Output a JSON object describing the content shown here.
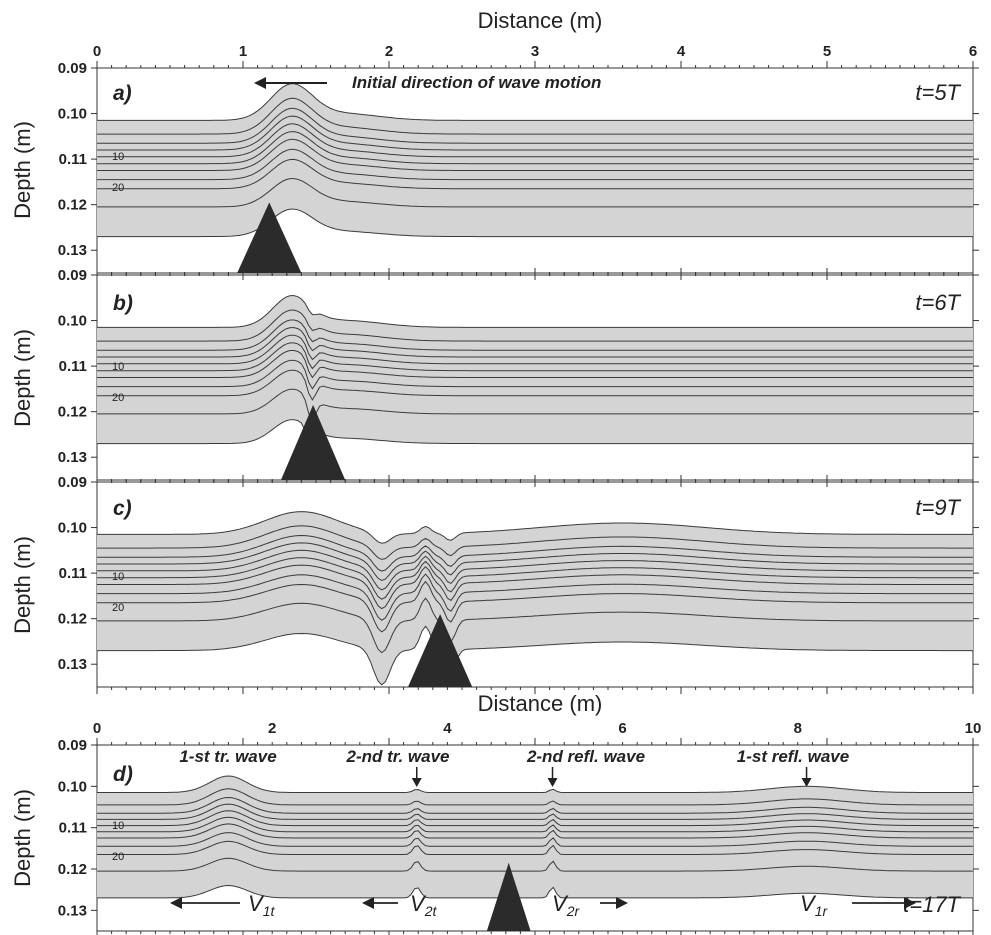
{
  "chart_data": [
    {
      "type": "line",
      "panel": "a)",
      "time_label": "t=5T",
      "annotation": "Initial direction of wave motion",
      "annotation_arrow": "left",
      "xlabel": "Distance (m)",
      "ylabel": "Depth (m)",
      "xlim": [
        0,
        6
      ],
      "ylim": [
        0.09,
        0.135
      ],
      "y_inverted": true,
      "xticks": [
        "0",
        "1",
        "2",
        "3",
        "4",
        "5",
        "6"
      ],
      "yticks": [
        "0.09",
        "0.10",
        "0.11",
        "0.12",
        "0.13"
      ],
      "line_labels": [
        "10",
        "20"
      ],
      "layer_depths": [
        0.1015,
        0.1045,
        0.1065,
        0.108,
        0.1095,
        0.111,
        0.1125,
        0.1145,
        0.1165,
        0.1205,
        0.127
      ],
      "fill_color": "#d4d4d4",
      "obstacle": {
        "center": 1.18,
        "top_depth": 0.1195,
        "half_width": 0.22
      },
      "waves": [
        {
          "center": 1.33,
          "width": 0.2,
          "amplitude": -0.0075
        },
        {
          "center": 1.68,
          "width": 0.35,
          "amplitude": -0.0015
        }
      ],
      "perturbations": []
    },
    {
      "type": "line",
      "panel": "b)",
      "time_label": "t=6T",
      "ylabel": "Depth (m)",
      "xlim": [
        0,
        6
      ],
      "ylim": [
        0.09,
        0.135
      ],
      "y_inverted": true,
      "yticks": [
        "0.09",
        "0.10",
        "0.11",
        "0.12",
        "0.13"
      ],
      "line_labels": [
        "10",
        "20"
      ],
      "layer_depths": [
        0.1015,
        0.1045,
        0.1065,
        0.108,
        0.1095,
        0.111,
        0.1125,
        0.1145,
        0.1165,
        0.1205,
        0.127
      ],
      "fill_color": "#d4d4d4",
      "obstacle": {
        "center": 1.48,
        "top_depth": 0.1185,
        "half_width": 0.22
      },
      "waves": [
        {
          "center": 1.33,
          "width": 0.18,
          "amplitude": -0.0065
        },
        {
          "center": 1.7,
          "width": 0.35,
          "amplitude": -0.0015
        }
      ],
      "perturbations": [
        {
          "center": 1.47,
          "width": 0.04,
          "amplitude": 0.004
        }
      ]
    },
    {
      "type": "line",
      "panel": "c)",
      "time_label": "t=9T",
      "ylabel": "Depth (m)",
      "xlim": [
        0,
        6
      ],
      "ylim": [
        0.09,
        0.135
      ],
      "y_inverted": true,
      "yticks": [
        "0.09",
        "0.10",
        "0.11",
        "0.12",
        "0.13"
      ],
      "line_labels": [
        "10",
        "20"
      ],
      "layer_depths": [
        0.1015,
        0.1045,
        0.1065,
        0.108,
        0.1095,
        0.111,
        0.1125,
        0.1145,
        0.1165,
        0.1205,
        0.127
      ],
      "fill_color": "#d4d4d4",
      "obstacle": {
        "center": 2.35,
        "top_depth": 0.119,
        "half_width": 0.22
      },
      "waves": [
        {
          "center": 1.4,
          "width": 0.35,
          "amplitude": -0.005
        },
        {
          "center": 3.6,
          "width": 0.8,
          "amplitude": -0.0025
        }
      ],
      "perturbations": [
        {
          "center": 1.95,
          "width": 0.08,
          "amplitude": 0.006
        },
        {
          "center": 2.25,
          "width": 0.05,
          "amplitude": -0.004
        },
        {
          "center": 2.42,
          "width": 0.05,
          "amplitude": 0.004
        }
      ]
    },
    {
      "type": "line",
      "panel": "d)",
      "time_label": "t=17T",
      "xlabel": "Distance (m)",
      "ylabel": "Depth (m)",
      "xlim": [
        0,
        10
      ],
      "ylim": [
        0.09,
        0.135
      ],
      "y_inverted": true,
      "xticks": [
        "0",
        "2",
        "4",
        "6",
        "8",
        "10"
      ],
      "yticks": [
        "0.09",
        "0.10",
        "0.11",
        "0.12",
        "0.13"
      ],
      "line_labels": [
        "10",
        "20"
      ],
      "layer_depths": [
        0.1015,
        0.1045,
        0.1065,
        0.108,
        0.1095,
        0.111,
        0.1125,
        0.1145,
        0.1165,
        0.1205,
        0.127
      ],
      "fill_color": "#d4d4d4",
      "obstacle": {
        "center": 4.7,
        "top_depth": 0.1185,
        "half_width": 0.25
      },
      "waves": [
        {
          "center": 1.5,
          "width": 0.3,
          "amplitude": -0.004
        },
        {
          "center": 8.1,
          "width": 0.6,
          "amplitude": -0.0015
        }
      ],
      "perturbations": [
        {
          "center": 3.65,
          "width": 0.06,
          "amplitude": -0.002
        },
        {
          "center": 5.2,
          "width": 0.05,
          "amplitude": -0.002
        }
      ],
      "wave_labels": [
        "1-st tr. wave",
        "2-nd tr. wave",
        "2-nd refl. wave",
        "1-st refl. wave"
      ],
      "wave_label_positions": [
        1.5,
        3.65,
        5.2,
        8.1
      ],
      "velocity_labels": [
        {
          "main": "V",
          "sub": "1t",
          "arrow": "left"
        },
        {
          "main": "V",
          "sub": "2t",
          "arrow": "left"
        },
        {
          "main": "V",
          "sub": "2r",
          "arrow": "right"
        },
        {
          "main": "V",
          "sub": "1r",
          "arrow": "right"
        }
      ]
    }
  ]
}
